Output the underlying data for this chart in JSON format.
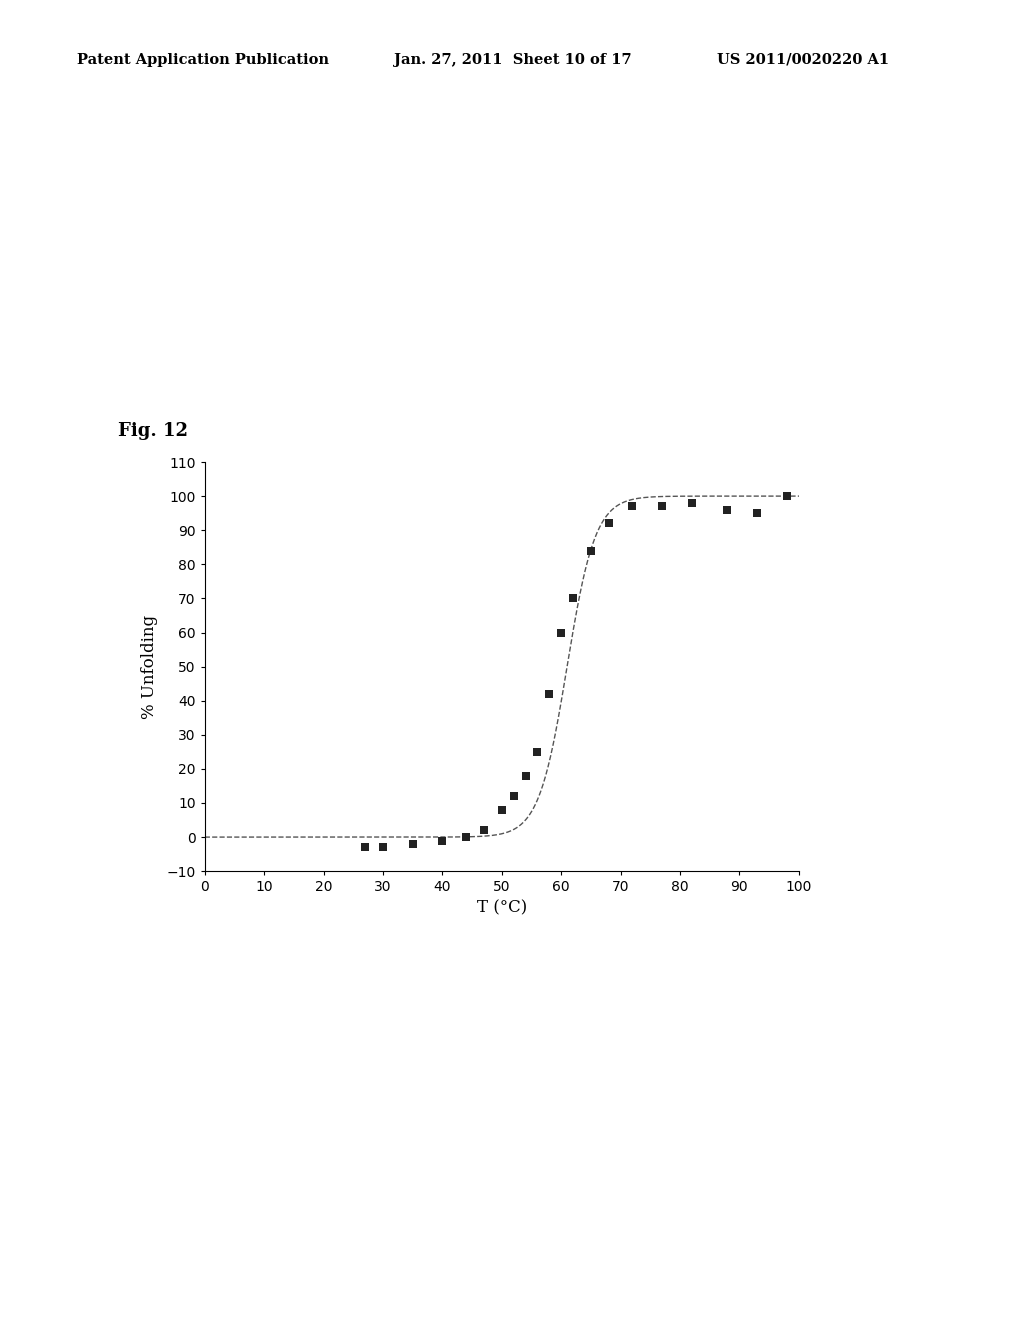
{
  "xlabel": "T (°C)",
  "ylabel": "% Unfolding",
  "xlim": [
    0,
    100
  ],
  "ylim": [
    -10,
    110
  ],
  "xticks": [
    0,
    10,
    20,
    30,
    40,
    50,
    60,
    70,
    80,
    90,
    100
  ],
  "yticks": [
    -10,
    0,
    10,
    20,
    30,
    40,
    50,
    60,
    70,
    80,
    90,
    100,
    110
  ],
  "scatter_x": [
    27,
    30,
    35,
    40,
    44,
    47,
    50,
    52,
    54,
    56,
    58,
    60,
    62,
    65,
    68,
    72,
    77,
    82,
    88,
    93,
    98
  ],
  "scatter_y": [
    -3,
    -3,
    -2,
    -1,
    0,
    2,
    8,
    12,
    18,
    25,
    42,
    60,
    70,
    84,
    92,
    97,
    97,
    98,
    96,
    95,
    100
  ],
  "sigmoid_Tm": 61.0,
  "sigmoid_k": 0.42,
  "sigmoid_ymin": 0,
  "sigmoid_ymax": 100,
  "curve_color": "#555555",
  "marker_color": "#222222",
  "background_color": "#ffffff",
  "header_left": "Patent Application Publication",
  "header_mid": "Jan. 27, 2011  Sheet 10 of 17",
  "header_right": "US 2011/0020220 A1",
  "fig_label": "Fig. 12"
}
